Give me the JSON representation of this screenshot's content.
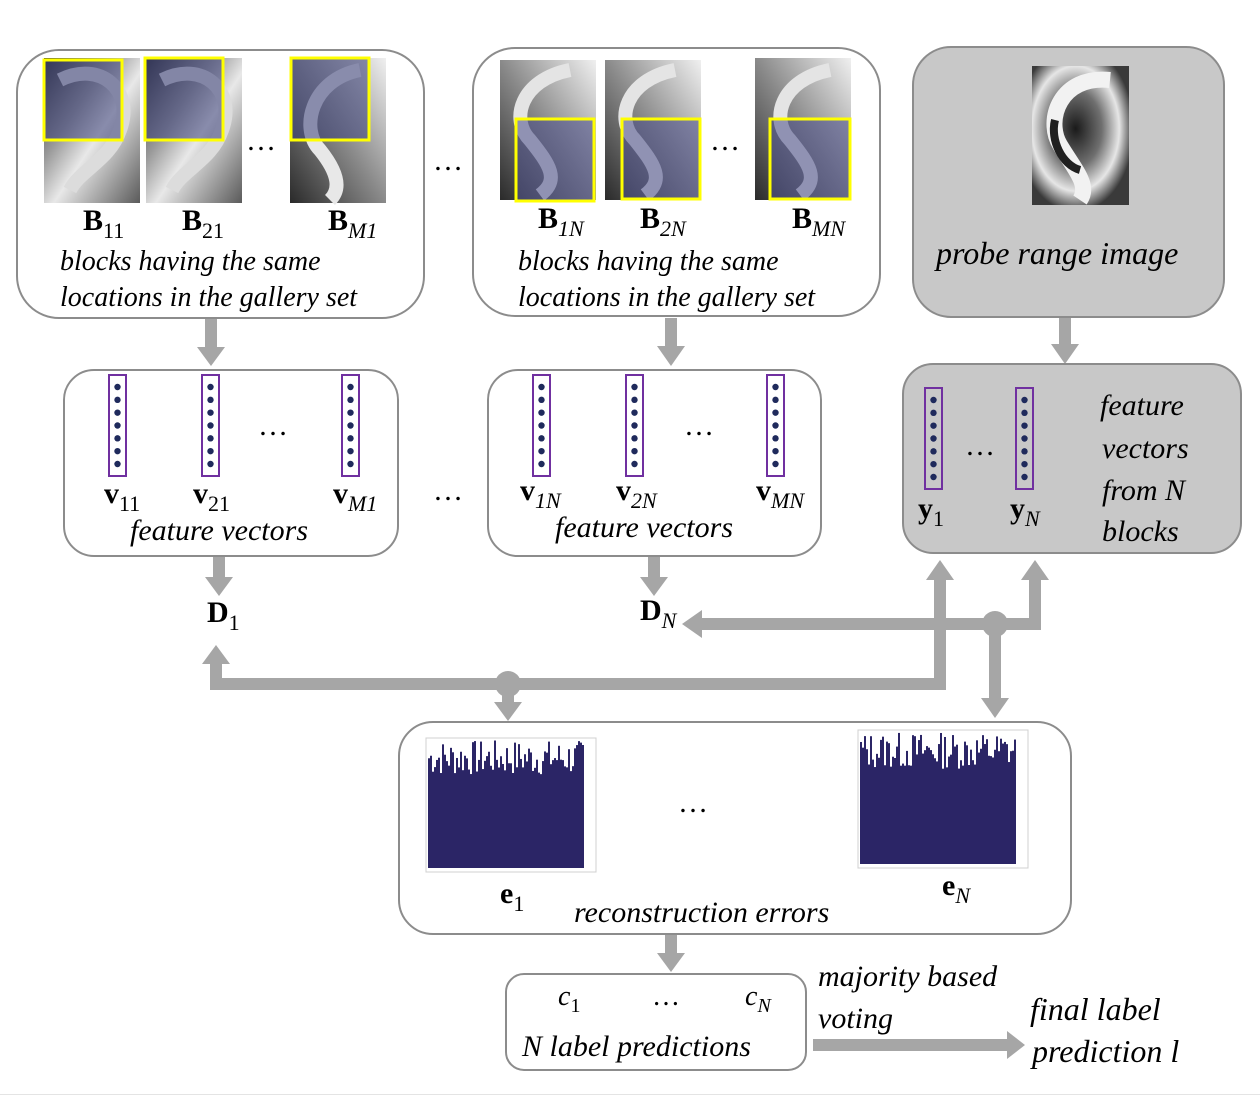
{
  "gallery_panel_1": {
    "block_labels": [
      {
        "main": "B",
        "sub": "11"
      },
      {
        "main": "B",
        "sub": "21"
      },
      {
        "main": "B",
        "sub": "M1"
      }
    ],
    "ellipsis": "…",
    "caption_line1": "blocks having the same",
    "caption_line2": "locations in the gallery set"
  },
  "between_panels_ellipsis": "…",
  "gallery_panel_N": {
    "block_labels": [
      {
        "main": "B",
        "sub": "1N"
      },
      {
        "main": "B",
        "sub": "2N"
      },
      {
        "main": "B",
        "sub": "MN"
      }
    ],
    "ellipsis": "…",
    "caption_line1": "blocks having the same",
    "caption_line2": "locations in the gallery set"
  },
  "probe_panel": {
    "caption": "probe range image"
  },
  "feature_panel_1": {
    "vector_labels": [
      {
        "main": "v",
        "sub": "11"
      },
      {
        "main": "v",
        "sub": "21"
      },
      {
        "main": "v",
        "sub": "M1"
      }
    ],
    "ellipsis": "…",
    "caption": "feature vectors"
  },
  "feature_between_ellipsis": "…",
  "feature_panel_N": {
    "vector_labels": [
      {
        "main": "v",
        "sub": "1N"
      },
      {
        "main": "v",
        "sub": "2N"
      },
      {
        "main": "v",
        "sub": "MN"
      }
    ],
    "ellipsis": "…",
    "caption": "feature vectors"
  },
  "probe_feature_panel": {
    "vector_labels": [
      {
        "main": "y",
        "sub": "1"
      },
      {
        "main": "y",
        "sub": "N"
      }
    ],
    "ellipsis": "…",
    "caption_lines": [
      "feature",
      "vectors",
      "from N",
      "blocks"
    ]
  },
  "dictionaries": [
    {
      "main": "D",
      "sub": "1"
    },
    {
      "main": "D",
      "sub": "N"
    }
  ],
  "errors_panel": {
    "labels": [
      {
        "main": "e",
        "sub": "1"
      },
      {
        "main": "e",
        "sub": "N"
      }
    ],
    "ellipsis": "…",
    "caption": "reconstruction errors"
  },
  "predictions_panel": {
    "labels": [
      {
        "main": "c",
        "sub": "1"
      },
      {
        "main": "c",
        "sub": "N"
      }
    ],
    "ellipsis": "…",
    "caption": "N label predictions"
  },
  "voting_text": [
    "majority based",
    "voting"
  ],
  "final_text": [
    "final label",
    "prediction l"
  ],
  "colors": {
    "panel_border": "#8c8c8c",
    "probe_fill": "#c8c8c8",
    "arrow": "#a6a6a6",
    "block_highlight": "#ffff00",
    "vector_border": "#7030a0",
    "vector_dot": "#1f2a5c",
    "bar_fill": "#2b2566"
  }
}
